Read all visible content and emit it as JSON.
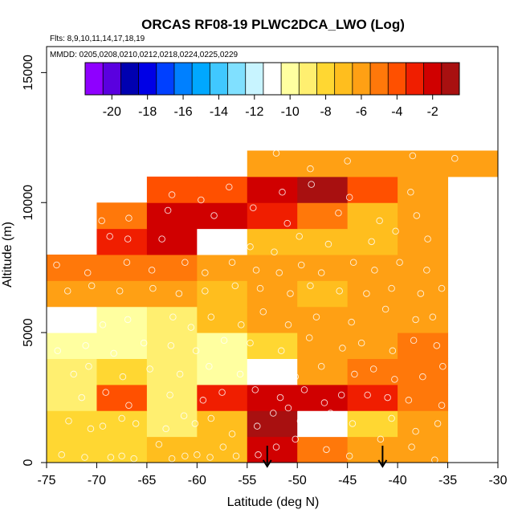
{
  "chart_data": {
    "type": "heatmap",
    "title": "ORCAS RF08-19 PLWC2DCA_LWO (Log)",
    "flights_text": "Flts: 8,9,10,11,14,17,18,19",
    "dates_text": "MMDD: 0205,0208,0210,0212,0218,0224,0225,0229",
    "xlabel": "Latitude (deg N)",
    "ylabel": "Altitude (m)",
    "xlim": [
      -75,
      -30
    ],
    "ylim": [
      0,
      16000
    ],
    "x_ticks": [
      -75,
      -70,
      -65,
      -60,
      -55,
      -50,
      -45,
      -40,
      -35,
      -30
    ],
    "x_tick_labels": [
      "-75",
      "-70",
      "-65",
      "-60",
      "-55",
      "-50",
      "-45",
      "-40",
      "-35",
      "-30"
    ],
    "y_ticks": [
      0,
      5000,
      10000,
      15000
    ],
    "y_tick_labels": [
      "0",
      "5000",
      "10000",
      "15000"
    ],
    "colorbar": {
      "range": [
        -21.5,
        -0.5
      ],
      "ticks": [
        -20,
        -18,
        -16,
        -14,
        -12,
        -10,
        -8,
        -6,
        -4,
        -2
      ],
      "tick_labels": [
        "-20",
        "-18",
        "-16",
        "-14",
        "-12",
        "-10",
        "-8",
        "-6",
        "-4",
        "-2"
      ],
      "colors": [
        "#8f00ff",
        "#5a00df",
        "#0000b0",
        "#0000e6",
        "#0040ff",
        "#0080ff",
        "#00a8ff",
        "#40c8ff",
        "#80e0ff",
        "#c8f4ff",
        "#ffffff",
        "#ffffa0",
        "#ffef70",
        "#ffd732",
        "#ffbe1e",
        "#ffa014",
        "#ff780a",
        "#ff5000",
        "#f01e00",
        "#d00000",
        "#a81010"
      ]
    },
    "lat_bins": [
      -75,
      -70,
      -65,
      -60,
      -55,
      -50,
      -45,
      -40,
      -35,
      -30
    ],
    "alt_bins": [
      0,
      1000,
      2000,
      3000,
      4000,
      5000,
      6000,
      7000,
      8000,
      9000,
      10000,
      11000,
      12000
    ],
    "cells_description": "values[i][j]: log10 LWC for altitude row i (0 = 0-1000 m) and latitude column j (0 = -75 to -70); null = no data",
    "values": [
      [
        -8.3,
        -8.3,
        -7.0,
        -6.6,
        -2.3,
        -4.8,
        -6.3,
        -6.3,
        null
      ],
      [
        -8.5,
        -8.1,
        -8.7,
        -6.6,
        -1.3,
        -11.1,
        -8.1,
        -6.3,
        null
      ],
      [
        -8.6,
        -3.7,
        -8.7,
        -2.8,
        -2.4,
        -2.5,
        -3.2,
        -5.3,
        null
      ],
      [
        -9.3,
        -8.0,
        -8.6,
        -9.8,
        -10.9,
        -6.2,
        -5.0,
        -4.9,
        null
      ],
      [
        -9.8,
        -9.6,
        -8.9,
        -9.6,
        -8.3,
        -6.2,
        -6.3,
        -5.1,
        null
      ],
      [
        -10.9,
        -9.9,
        -9.0,
        -6.8,
        -6.4,
        -6.4,
        -6.2,
        -5.8,
        null
      ],
      [
        -6.4,
        -6.5,
        -6.5,
        -6.6,
        -5.6,
        -6.8,
        -6.4,
        -5.7,
        null
      ],
      [
        -5.4,
        -5.4,
        -5.4,
        -5.6,
        -5.8,
        -6.5,
        -6.2,
        -5.6,
        null
      ],
      [
        null,
        -2.9,
        -1.6,
        -11.3,
        -7.0,
        -6.6,
        -6.9,
        -6.4,
        null
      ],
      [
        null,
        -4.7,
        -1.8,
        -2.5,
        -3.1,
        -4.6,
        -6.9,
        -6.2,
        null
      ],
      [
        null,
        null,
        -4.3,
        -3.8,
        -2.0,
        -1.3,
        -3.7,
        -6.4,
        null
      ],
      [
        null,
        null,
        null,
        null,
        -6.0,
        -5.6,
        -6.4,
        -6.3,
        -6.4
      ]
    ],
    "arrows_latitude": [
      -53,
      -41.5
    ],
    "sample_points": [
      [
        -73.5,
        300
      ],
      [
        -71.2,
        200
      ],
      [
        -68.6,
        200
      ],
      [
        -67.5,
        250
      ],
      [
        -66.3,
        150
      ],
      [
        -63.8,
        700
      ],
      [
        -62.5,
        150
      ],
      [
        -61.2,
        250
      ],
      [
        -60.0,
        300
      ],
      [
        -58.7,
        200
      ],
      [
        -57.4,
        600
      ],
      [
        -56.1,
        250
      ],
      [
        -53.9,
        300
      ],
      [
        -52.1,
        600
      ],
      [
        -50.2,
        900
      ],
      [
        -47.1,
        500
      ],
      [
        -44.8,
        250
      ],
      [
        -41.7,
        900
      ],
      [
        -38.6,
        600
      ],
      [
        -36.3,
        100
      ],
      [
        -72.8,
        1600
      ],
      [
        -70.6,
        1300
      ],
      [
        -69.4,
        1400
      ],
      [
        -67.5,
        1700
      ],
      [
        -66.1,
        1500
      ],
      [
        -63.1,
        1300
      ],
      [
        -61.3,
        1800
      ],
      [
        -60.2,
        1500
      ],
      [
        -58.6,
        1700
      ],
      [
        -56.5,
        1100
      ],
      [
        -54.0,
        1400
      ],
      [
        -52.4,
        1900
      ],
      [
        -50.9,
        2100
      ],
      [
        -49.7,
        1600
      ],
      [
        -46.7,
        1900
      ],
      [
        -44.5,
        1500
      ],
      [
        -40.6,
        1700
      ],
      [
        -38.2,
        1200
      ],
      [
        -36.0,
        1500
      ],
      [
        -71.5,
        2500
      ],
      [
        -69.1,
        2700
      ],
      [
        -66.8,
        2200
      ],
      [
        -62.7,
        2600
      ],
      [
        -59.4,
        2400
      ],
      [
        -57.5,
        2700
      ],
      [
        -54.2,
        2800
      ],
      [
        -51.7,
        2500
      ],
      [
        -49.3,
        2800
      ],
      [
        -47.3,
        2300
      ],
      [
        -45.6,
        2600
      ],
      [
        -43.0,
        2600
      ],
      [
        -41.0,
        2500
      ],
      [
        -38.9,
        2400
      ],
      [
        -35.6,
        2200
      ],
      [
        -72.3,
        3400
      ],
      [
        -70.8,
        3700
      ],
      [
        -67.4,
        3300
      ],
      [
        -64.7,
        3600
      ],
      [
        -61.7,
        3400
      ],
      [
        -58.8,
        3700
      ],
      [
        -55.7,
        3400
      ],
      [
        -53.1,
        3500
      ],
      [
        -50.2,
        3300
      ],
      [
        -47.6,
        3700
      ],
      [
        -44.3,
        3400
      ],
      [
        -42.4,
        3600
      ],
      [
        -40.3,
        3200
      ],
      [
        -37.5,
        3300
      ],
      [
        -35.5,
        3700
      ],
      [
        -73.9,
        4300
      ],
      [
        -71.1,
        4500
      ],
      [
        -68.3,
        4200
      ],
      [
        -65.3,
        4600
      ],
      [
        -62.6,
        4500
      ],
      [
        -60.1,
        4300
      ],
      [
        -57.3,
        4700
      ],
      [
        -54.7,
        4600
      ],
      [
        -51.6,
        4300
      ],
      [
        -48.8,
        4800
      ],
      [
        -45.5,
        4400
      ],
      [
        -43.6,
        4600
      ],
      [
        -40.5,
        4300
      ],
      [
        -38.4,
        4700
      ],
      [
        -36.1,
        4500
      ],
      [
        -74.0,
        5500
      ],
      [
        -72.0,
        5700
      ],
      [
        -69.4,
        5300
      ],
      [
        -66.9,
        5500
      ],
      [
        -62.4,
        5600
      ],
      [
        -60.6,
        5200
      ],
      [
        -58.6,
        5600
      ],
      [
        -55.6,
        5300
      ],
      [
        -53.4,
        5800
      ],
      [
        -50.9,
        5300
      ],
      [
        -48.1,
        5600
      ],
      [
        -44.6,
        5400
      ],
      [
        -41.2,
        5900
      ],
      [
        -38.2,
        5500
      ],
      [
        -36.5,
        5600
      ],
      [
        -72.9,
        6600
      ],
      [
        -70.5,
        6800
      ],
      [
        -67.7,
        6600
      ],
      [
        -64.4,
        6700
      ],
      [
        -61.8,
        6500
      ],
      [
        -59.2,
        6600
      ],
      [
        -56.2,
        6800
      ],
      [
        -53.7,
        6700
      ],
      [
        -50.7,
        6500
      ],
      [
        -48.7,
        6800
      ],
      [
        -45.8,
        6600
      ],
      [
        -43.1,
        6500
      ],
      [
        -40.6,
        6700
      ],
      [
        -37.7,
        6500
      ],
      [
        -35.6,
        6700
      ],
      [
        -74.0,
        7600
      ],
      [
        -70.9,
        7300
      ],
      [
        -67.0,
        7700
      ],
      [
        -64.5,
        7400
      ],
      [
        -61.2,
        7700
      ],
      [
        -59.2,
        7300
      ],
      [
        -56.5,
        7700
      ],
      [
        -54.1,
        7400
      ],
      [
        -51.8,
        7300
      ],
      [
        -49.6,
        7600
      ],
      [
        -47.6,
        7300
      ],
      [
        -44.4,
        7700
      ],
      [
        -42.3,
        7400
      ],
      [
        -39.8,
        7700
      ],
      [
        -37.1,
        7400
      ],
      [
        -68.7,
        8700
      ],
      [
        -66.9,
        8600
      ],
      [
        -63.5,
        8600
      ],
      [
        -59.3,
        8600
      ],
      [
        -56.6,
        8500
      ],
      [
        -54.7,
        8300
      ],
      [
        -52.3,
        8100
      ],
      [
        -49.8,
        8700
      ],
      [
        -46.9,
        8400
      ],
      [
        -42.6,
        8500
      ],
      [
        -40.2,
        8900
      ],
      [
        -37.0,
        8600
      ],
      [
        -69.5,
        9300
      ],
      [
        -66.8,
        9400
      ],
      [
        -62.9,
        9700
      ],
      [
        -58.3,
        9500
      ],
      [
        -54.4,
        9800
      ],
      [
        -51.0,
        9200
      ],
      [
        -45.9,
        9600
      ],
      [
        -41.8,
        9300
      ],
      [
        -38.1,
        9500
      ],
      [
        -62.5,
        10300
      ],
      [
        -59.6,
        10100
      ],
      [
        -56.8,
        10600
      ],
      [
        -51.5,
        10400
      ],
      [
        -48.6,
        10700
      ],
      [
        -44.8,
        10200
      ],
      [
        -38.7,
        10400
      ],
      [
        -56.0,
        11500
      ],
      [
        -52.1,
        11900
      ],
      [
        -48.7,
        11300
      ],
      [
        -45.0,
        11600
      ],
      [
        -38.5,
        11800
      ],
      [
        -34.3,
        11700
      ]
    ]
  }
}
